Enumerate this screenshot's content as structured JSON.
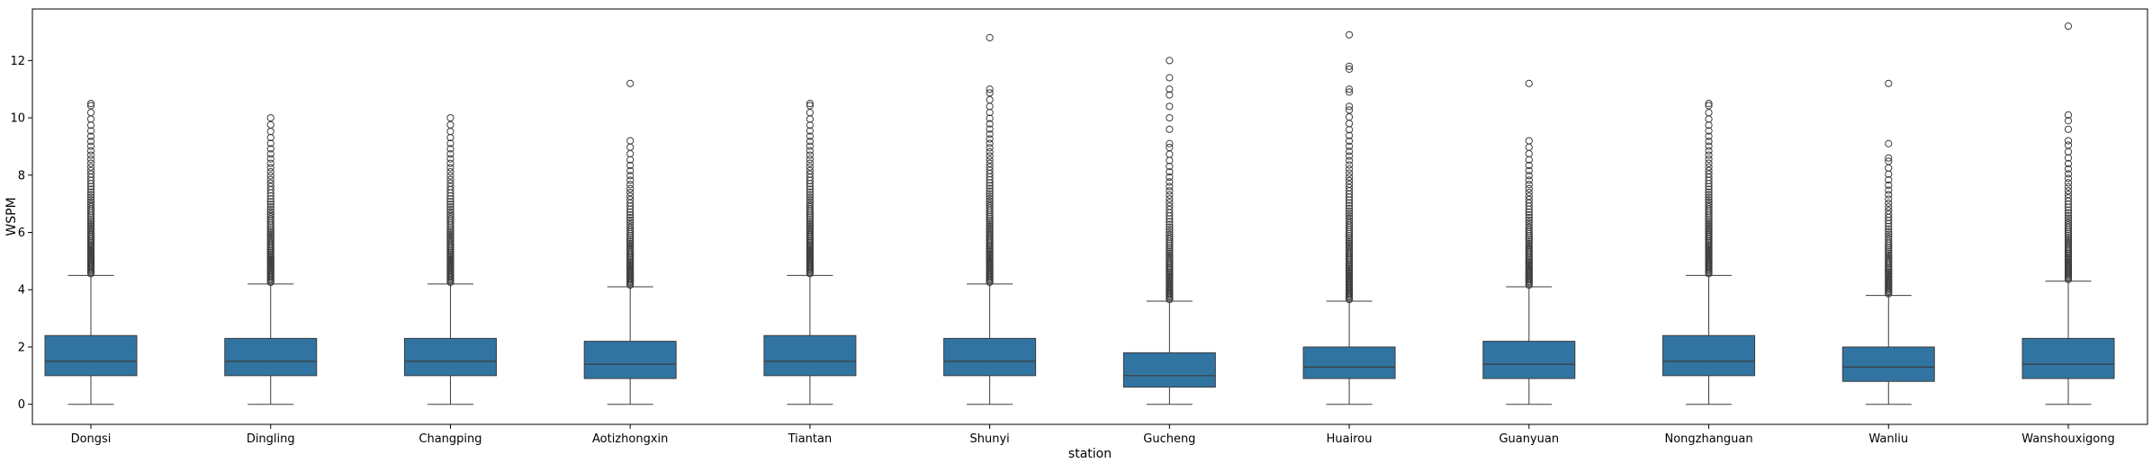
{
  "chart_data": {
    "type": "box",
    "xlabel": "station",
    "ylabel": "WSPM",
    "ylim": [
      -0.7,
      13.8
    ],
    "yticks": [
      0,
      2,
      4,
      6,
      8,
      10,
      12
    ],
    "colors": {
      "box": "#3274a1",
      "edge": "#3c3c3c",
      "axes": "#000000"
    },
    "categories": [
      "Dongsi",
      "Dingling",
      "Changping",
      "Aotizhongxin",
      "Tiantan",
      "Shunyi",
      "Gucheng",
      "Huairou",
      "Guanyuan",
      "Nongzhanguan",
      "Wanliu",
      "Wanshouxigong"
    ],
    "boxes": [
      {
        "min": 0,
        "q1": 1.0,
        "median": 1.5,
        "q3": 2.4,
        "whisker_high": 4.5,
        "outlier_max": 10.5,
        "extra_outliers": []
      },
      {
        "min": 0,
        "q1": 1.0,
        "median": 1.5,
        "q3": 2.3,
        "whisker_high": 4.2,
        "outlier_max": 10.0,
        "extra_outliers": []
      },
      {
        "min": 0,
        "q1": 1.0,
        "median": 1.5,
        "q3": 2.3,
        "whisker_high": 4.2,
        "outlier_max": 10.0,
        "extra_outliers": []
      },
      {
        "min": 0,
        "q1": 0.9,
        "median": 1.4,
        "q3": 2.2,
        "whisker_high": 4.1,
        "outlier_max": 9.2,
        "extra_outliers": [
          11.2
        ]
      },
      {
        "min": 0,
        "q1": 1.0,
        "median": 1.5,
        "q3": 2.4,
        "whisker_high": 4.5,
        "outlier_max": 10.5,
        "extra_outliers": []
      },
      {
        "min": 0,
        "q1": 1.0,
        "median": 1.5,
        "q3": 2.3,
        "whisker_high": 4.2,
        "outlier_max": 11.0,
        "extra_outliers": [
          12.8
        ]
      },
      {
        "min": 0,
        "q1": 0.6,
        "median": 1.0,
        "q3": 1.8,
        "whisker_high": 3.6,
        "outlier_max": 9.1,
        "extra_outliers": [
          9.6,
          10.0,
          10.4,
          10.8,
          11.0,
          11.4,
          12.0
        ]
      },
      {
        "min": 0,
        "q1": 0.9,
        "median": 1.3,
        "q3": 2.0,
        "whisker_high": 3.6,
        "outlier_max": 10.4,
        "extra_outliers": [
          10.9,
          11.0,
          11.7,
          11.8,
          12.9
        ]
      },
      {
        "min": 0,
        "q1": 0.9,
        "median": 1.4,
        "q3": 2.2,
        "whisker_high": 4.1,
        "outlier_max": 9.2,
        "extra_outliers": [
          11.2
        ]
      },
      {
        "min": 0,
        "q1": 1.0,
        "median": 1.5,
        "q3": 2.4,
        "whisker_high": 4.5,
        "outlier_max": 10.5,
        "extra_outliers": []
      },
      {
        "min": 0,
        "q1": 0.8,
        "median": 1.3,
        "q3": 2.0,
        "whisker_high": 3.8,
        "outlier_max": 8.6,
        "extra_outliers": [
          9.1,
          11.2
        ]
      },
      {
        "min": 0,
        "q1": 0.9,
        "median": 1.4,
        "q3": 2.3,
        "whisker_high": 4.3,
        "outlier_max": 9.2,
        "extra_outliers": [
          9.6,
          9.9,
          10.1,
          13.2
        ]
      }
    ]
  }
}
